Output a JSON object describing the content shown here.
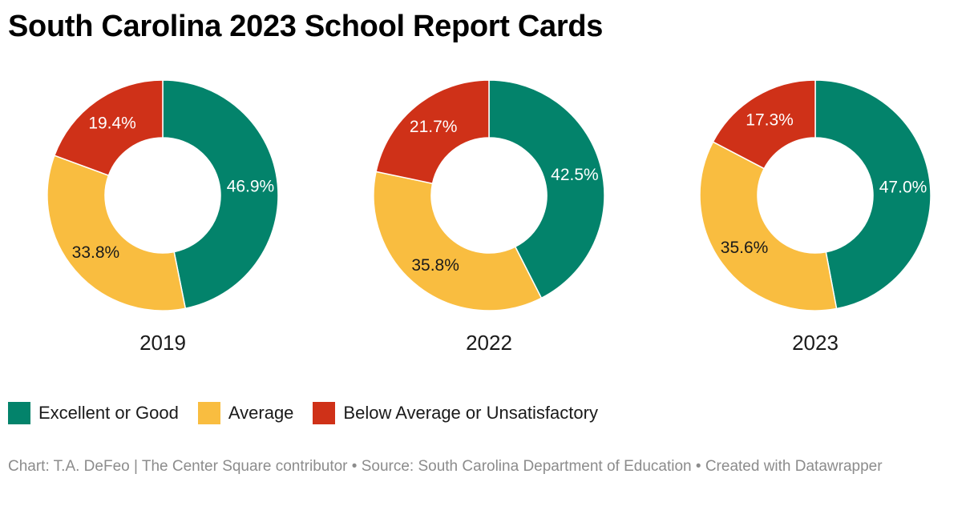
{
  "header": {
    "title": "South Carolina 2023 School Report Cards"
  },
  "legend": {
    "items": [
      {
        "label": "Excellent or Good",
        "color": "#03836b"
      },
      {
        "label": "Average",
        "color": "#f9bd40"
      },
      {
        "label": "Below Average or Unsatisfactory",
        "color": "#cf3118"
      }
    ]
  },
  "footer": {
    "credit": "Chart: T.A. DeFeo | The Center Square contributor • Source: South Carolina Department of Education • Created with Datawrapper"
  },
  "chart_data": [
    {
      "type": "pie",
      "donut": true,
      "label": "2019",
      "categories": [
        "Excellent or Good",
        "Average",
        "Below Average or Unsatisfactory"
      ],
      "values": [
        46.9,
        33.8,
        19.4
      ],
      "value_labels": [
        "46.9%",
        "33.8%",
        "19.4%"
      ],
      "colors": [
        "#03836b",
        "#f9bd40",
        "#cf3118"
      ]
    },
    {
      "type": "pie",
      "donut": true,
      "label": "2022",
      "categories": [
        "Excellent or Good",
        "Average",
        "Below Average or Unsatisfactory"
      ],
      "values": [
        42.5,
        35.8,
        21.7
      ],
      "value_labels": [
        "42.5%",
        "35.8%",
        "21.7%"
      ],
      "colors": [
        "#03836b",
        "#f9bd40",
        "#cf3118"
      ]
    },
    {
      "type": "pie",
      "donut": true,
      "label": "2023",
      "categories": [
        "Excellent or Good",
        "Average",
        "Below Average or Unsatisfactory"
      ],
      "values": [
        47.0,
        35.6,
        17.3
      ],
      "value_labels": [
        "47.0%",
        "35.6%",
        "17.3%"
      ],
      "colors": [
        "#03836b",
        "#f9bd40",
        "#cf3118"
      ]
    }
  ]
}
